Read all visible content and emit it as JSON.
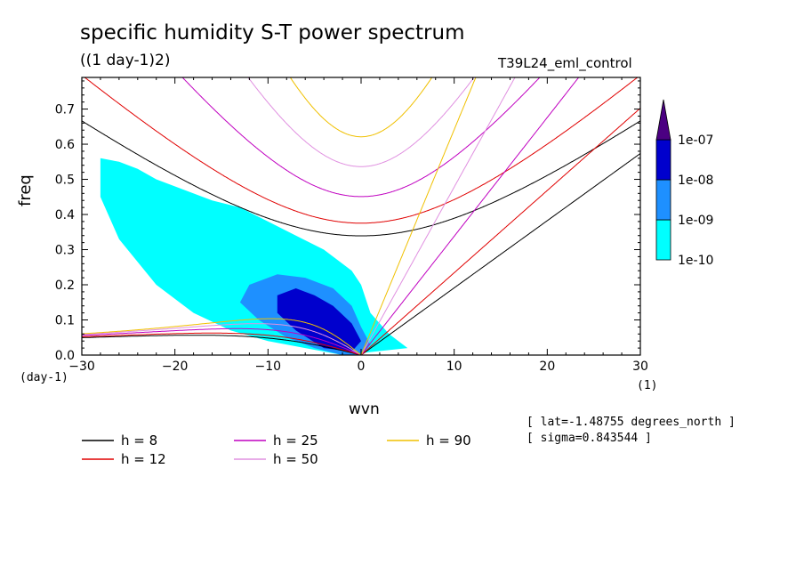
{
  "header": {
    "title": "specific humidity S-T power spectrum",
    "units": "((1 day-1)2)",
    "run": "T39L24_eml_control"
  },
  "info": {
    "lat": "[ lat=-1.48755 degrees_north ]",
    "sigma": "[ sigma=0.843544 ]"
  },
  "chart_data": {
    "type": "heatmap",
    "title": "specific humidity S-T power spectrum",
    "xlabel": "wvn",
    "ylabel": "freq",
    "x_unit_label": "(1)",
    "y_unit_label": "(day-1)",
    "xlim": [
      -30,
      30
    ],
    "ylim": [
      0,
      0.79
    ],
    "xticks": [
      -30,
      -20,
      -10,
      0,
      10,
      20,
      30
    ],
    "yticks": [
      0.0,
      0.1,
      0.2,
      0.3,
      0.4,
      0.5,
      0.6,
      0.7
    ],
    "colorbar": {
      "levels": [
        "1e-10",
        "1e-09",
        "1e-08",
        "1e-07"
      ],
      "colors": [
        "#00ffff",
        "#1e90ff",
        "#0000cd",
        "#4b0082"
      ],
      "extend": "max"
    },
    "contour_regions": [
      {
        "level": 0,
        "x": [
          -28,
          -26,
          -24,
          -22,
          -19,
          -16,
          -13,
          -10,
          -7,
          -4,
          -1,
          0,
          1,
          3,
          5,
          -2,
          -6,
          -10,
          -14,
          -18,
          -22,
          -26,
          -28
        ],
        "y": [
          0.56,
          0.55,
          0.53,
          0.5,
          0.47,
          0.44,
          0.42,
          0.38,
          0.34,
          0.3,
          0.24,
          0.2,
          0.12,
          0.06,
          0.02,
          0.0,
          0.02,
          0.04,
          0.07,
          0.12,
          0.2,
          0.33,
          0.45
        ]
      },
      {
        "level": 1,
        "x": [
          -12,
          -9,
          -6,
          -3,
          -1,
          0,
          1,
          0,
          -2,
          -5,
          -8,
          -11,
          -13
        ],
        "y": [
          0.2,
          0.23,
          0.22,
          0.19,
          0.14,
          0.08,
          0.03,
          0.0,
          0.0,
          0.02,
          0.05,
          0.1,
          0.15
        ]
      },
      {
        "level": 2,
        "x": [
          -9,
          -7,
          -5,
          -3,
          -1,
          0,
          -1,
          -4,
          -7,
          -9
        ],
        "y": [
          0.17,
          0.19,
          0.17,
          0.14,
          0.09,
          0.04,
          0.01,
          0.02,
          0.07,
          0.12
        ]
      }
    ],
    "dispersion_curves": [
      {
        "name": "h =  8",
        "color": "#000000"
      },
      {
        "name": "h = 12",
        "color": "#e00000"
      },
      {
        "name": "h = 25",
        "color": "#c000c0"
      },
      {
        "name": "h = 50",
        "color": "#e090e0"
      },
      {
        "name": "h = 90",
        "color": "#f0c000"
      }
    ],
    "legend_position": "bottom"
  }
}
